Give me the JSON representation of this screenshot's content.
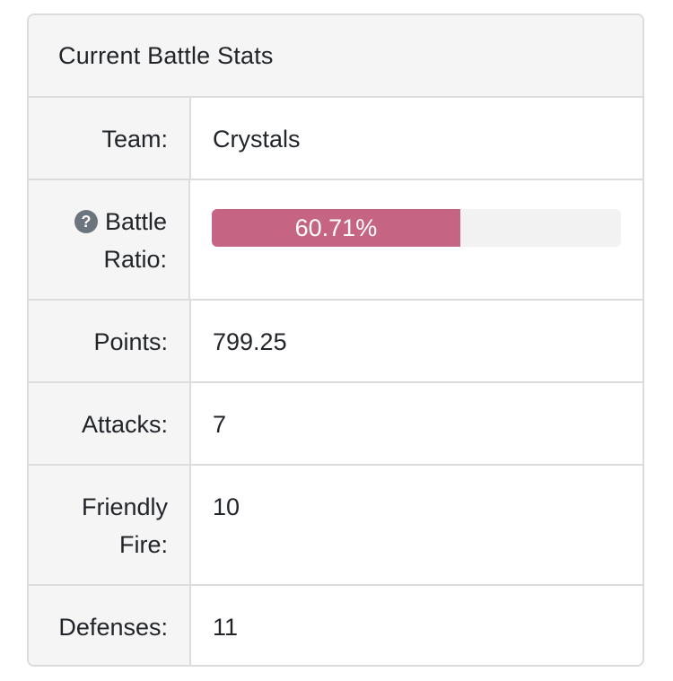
{
  "panel": {
    "title": "Current Battle Stats"
  },
  "rows": {
    "team": {
      "label": "Team:",
      "value": "Crystals"
    },
    "battle_ratio": {
      "label_line1": "Battle",
      "label_line2": "Ratio:",
      "help_icon": "question-circle-icon",
      "value_text": "60.71%",
      "value_percent": 60.71,
      "bar_color": "#c56483"
    },
    "points": {
      "label": "Points:",
      "value": "799.25"
    },
    "attacks": {
      "label": "Attacks:",
      "value": "7"
    },
    "friendly_fire": {
      "label_line1": "Friendly",
      "label_line2": "Fire:",
      "value": "10"
    },
    "defenses": {
      "label": "Defenses:",
      "value": "11"
    }
  }
}
